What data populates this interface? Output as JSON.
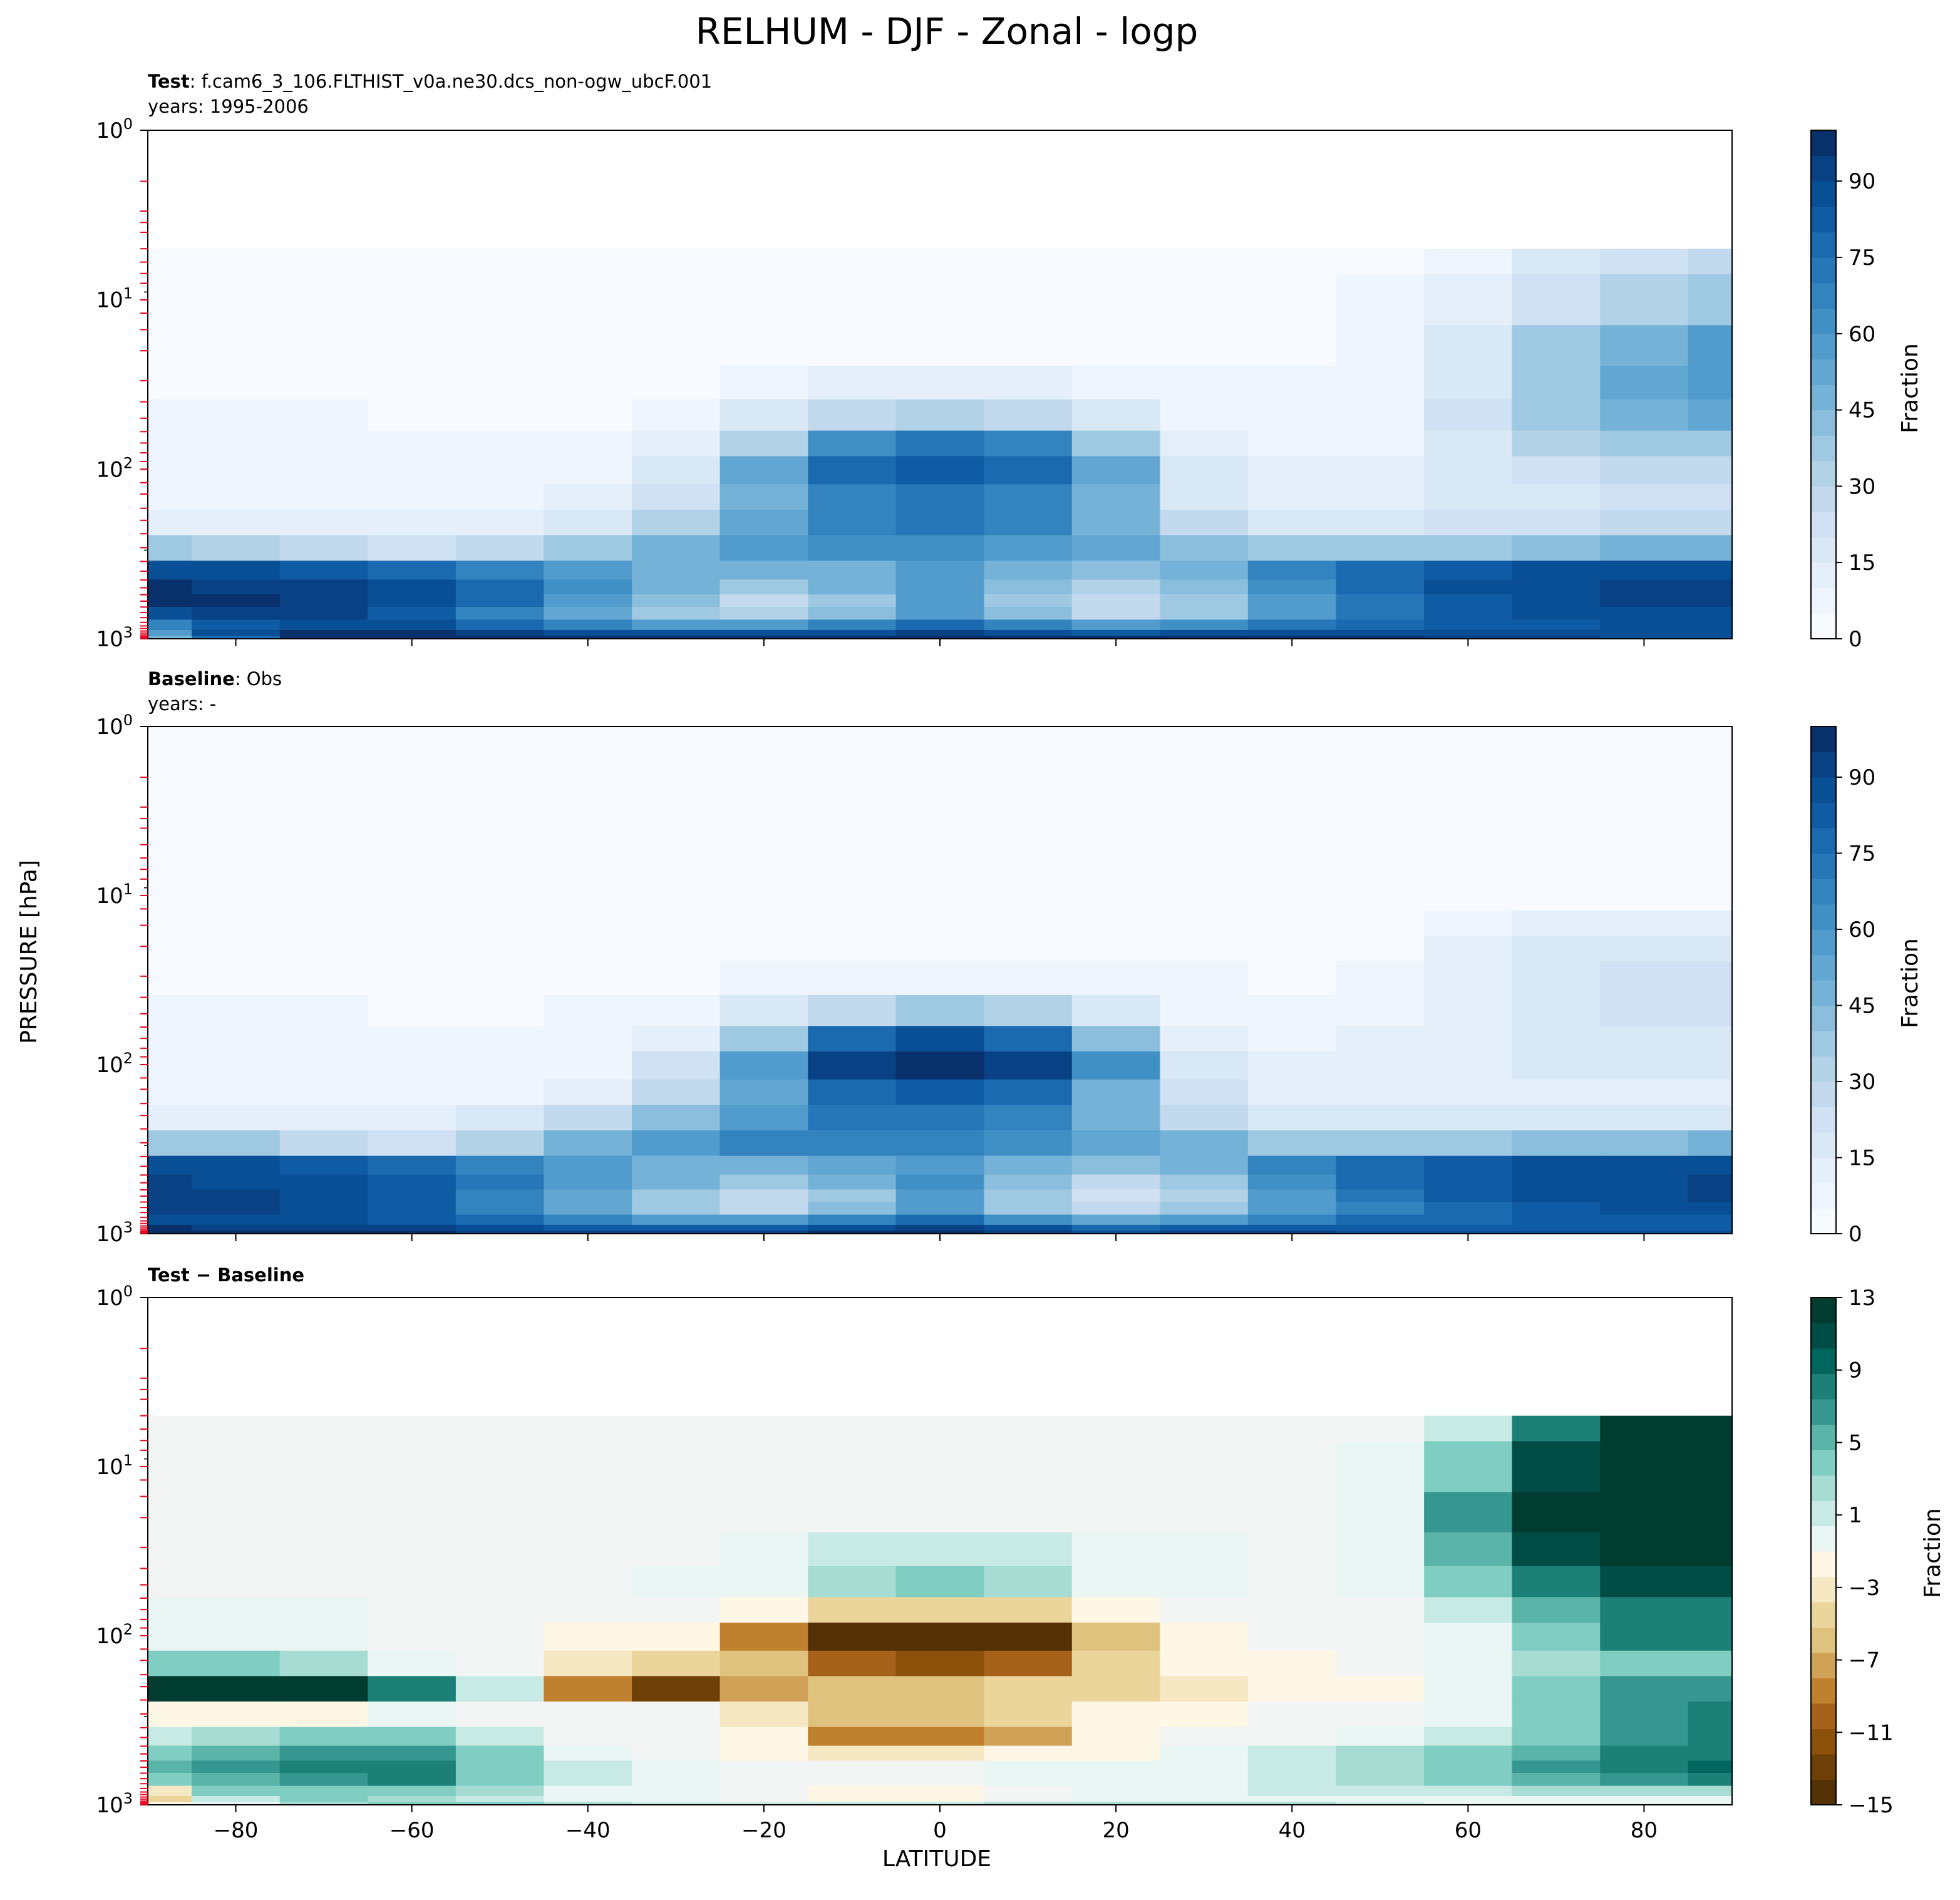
{
  "figure": {
    "title": "RELHUM - DJF - Zonal - logp",
    "ylabel": "PRESSURE [hPa]",
    "xlabel": "LATITUDE"
  },
  "panels": [
    {
      "label_bold": "Test",
      "label_rest": ": f.cam6_3_106.FLTHIST_v0a.ne30.dcs_non-ogw_ubcF.001",
      "years_line": "years: 1995-2006",
      "cbar_label": "Fraction",
      "cbar_ticks": [
        "0",
        "15",
        "30",
        "45",
        "60",
        "75",
        "90"
      ]
    },
    {
      "label_bold": "Baseline",
      "label_rest": ": Obs",
      "years_line": "years: -",
      "cbar_label": "Fraction",
      "cbar_ticks": [
        "0",
        "15",
        "30",
        "45",
        "60",
        "75",
        "90"
      ]
    },
    {
      "label_bold": "Test",
      "label_rest": "",
      "label_bold2": "Baseline",
      "years_line": "",
      "cbar_label": "Fraction",
      "cbar_ticks": [
        "13",
        "9",
        "5",
        "1",
        "−3",
        "−7",
        "−11",
        "−15"
      ]
    }
  ],
  "chart_data": [
    {
      "type": "heatmap",
      "name": "Test",
      "x": [
        -90,
        -80,
        -70,
        -60,
        -50,
        -40,
        -30,
        -20,
        -10,
        0,
        10,
        20,
        30,
        40,
        50,
        60,
        70,
        80,
        90
      ],
      "y": [
        5,
        10,
        20,
        30,
        50,
        70,
        100,
        150,
        200,
        300,
        400,
        500,
        600,
        700,
        850,
        925,
        1000
      ],
      "z": [
        [
          0,
          0,
          0,
          0,
          0,
          0,
          0,
          0,
          0,
          0,
          0,
          0,
          0,
          0,
          0,
          3,
          10,
          16,
          20
        ],
        [
          0,
          0,
          0,
          0,
          0,
          0,
          0,
          0,
          0,
          0,
          0,
          0,
          0,
          0,
          1,
          6,
          18,
          28,
          34
        ],
        [
          0,
          0,
          0,
          0,
          0,
          0,
          0,
          0,
          0,
          0,
          0,
          0,
          0,
          0,
          2,
          12,
          30,
          42,
          50
        ],
        [
          0,
          0,
          0,
          0,
          0,
          0,
          0,
          2,
          6,
          8,
          6,
          3,
          1,
          1,
          2,
          14,
          34,
          46,
          52
        ],
        [
          1,
          1,
          1,
          0,
          0,
          0,
          3,
          10,
          22,
          26,
          22,
          12,
          4,
          2,
          3,
          16,
          32,
          42,
          46
        ],
        [
          2,
          2,
          2,
          1,
          1,
          1,
          8,
          28,
          58,
          68,
          60,
          34,
          8,
          4,
          4,
          14,
          26,
          32,
          34
        ],
        [
          3,
          3,
          3,
          2,
          2,
          3,
          14,
          45,
          72,
          78,
          72,
          48,
          12,
          6,
          6,
          10,
          18,
          22,
          24
        ],
        [
          4,
          4,
          4,
          3,
          3,
          6,
          18,
          40,
          62,
          68,
          62,
          40,
          14,
          8,
          8,
          10,
          14,
          16,
          18
        ],
        [
          8,
          8,
          6,
          5,
          8,
          14,
          28,
          48,
          62,
          66,
          60,
          42,
          20,
          14,
          14,
          16,
          18,
          20,
          22
        ],
        [
          30,
          26,
          20,
          16,
          22,
          32,
          44,
          54,
          58,
          56,
          54,
          46,
          36,
          32,
          32,
          34,
          38,
          40,
          42
        ],
        [
          84,
          82,
          78,
          70,
          64,
          54,
          44,
          40,
          44,
          52,
          42,
          36,
          44,
          60,
          70,
          76,
          80,
          82,
          84
        ],
        [
          90,
          88,
          86,
          82,
          72,
          58,
          44,
          34,
          40,
          54,
          38,
          28,
          36,
          58,
          72,
          80,
          84,
          86,
          88
        ],
        [
          90,
          90,
          88,
          82,
          70,
          52,
          36,
          24,
          34,
          50,
          32,
          20,
          30,
          52,
          68,
          78,
          84,
          86,
          88
        ],
        [
          82,
          86,
          86,
          78,
          64,
          48,
          32,
          26,
          38,
          52,
          36,
          24,
          34,
          52,
          66,
          76,
          80,
          82,
          84
        ],
        [
          62,
          78,
          84,
          80,
          72,
          62,
          54,
          52,
          62,
          70,
          60,
          50,
          56,
          66,
          72,
          76,
          78,
          80,
          80
        ],
        [
          50,
          82,
          90,
          90,
          86,
          82,
          80,
          80,
          84,
          86,
          84,
          78,
          80,
          82,
          80,
          80,
          80,
          80,
          80
        ],
        [
          40,
          70,
          96,
          96,
          94,
          92,
          92,
          92,
          94,
          94,
          94,
          92,
          92,
          92,
          90,
          88,
          86,
          84,
          84
        ]
      ]
    },
    {
      "type": "heatmap",
      "name": "Baseline",
      "x": [
        -90,
        -80,
        -70,
        -60,
        -50,
        -40,
        -30,
        -20,
        -10,
        0,
        10,
        20,
        30,
        40,
        50,
        60,
        70,
        80,
        90
      ],
      "y": [
        1,
        5,
        10,
        15,
        20,
        30,
        50,
        70,
        100,
        150,
        200,
        300,
        400,
        500,
        600,
        700,
        850,
        925,
        1000
      ],
      "z": [
        [
          0,
          0,
          0,
          0,
          0,
          0,
          0,
          0,
          0,
          0,
          0,
          0,
          0,
          0,
          0,
          0,
          0,
          0,
          0
        ],
        [
          0,
          0,
          0,
          0,
          0,
          0,
          0,
          0,
          0,
          0,
          0,
          0,
          0,
          0,
          0,
          0,
          0,
          0,
          0
        ],
        [
          0,
          0,
          0,
          0,
          0,
          0,
          0,
          0,
          0,
          0,
          0,
          0,
          0,
          0,
          0,
          0,
          0,
          0,
          0
        ],
        [
          0,
          0,
          0,
          0,
          0,
          0,
          0,
          0,
          0,
          0,
          0,
          0,
          0,
          0,
          0,
          3,
          5,
          7,
          8
        ],
        [
          0,
          0,
          0,
          0,
          0,
          0,
          0,
          0,
          0,
          0,
          0,
          0,
          0,
          0,
          0,
          6,
          10,
          12,
          13
        ],
        [
          0,
          0,
          0,
          0,
          0,
          0,
          0,
          1,
          3,
          4,
          3,
          2,
          1,
          0,
          1,
          8,
          14,
          17,
          18
        ],
        [
          1,
          1,
          1,
          0,
          0,
          1,
          3,
          10,
          24,
          30,
          26,
          12,
          4,
          2,
          3,
          9,
          14,
          16,
          17
        ],
        [
          2,
          2,
          2,
          1,
          1,
          2,
          8,
          32,
          70,
          80,
          70,
          36,
          8,
          4,
          5,
          9,
          12,
          13,
          14
        ],
        [
          3,
          3,
          3,
          2,
          2,
          4,
          16,
          54,
          88,
          92,
          86,
          56,
          14,
          6,
          6,
          8,
          10,
          10,
          10
        ],
        [
          4,
          4,
          4,
          3,
          3,
          8,
          22,
          48,
          72,
          76,
          70,
          44,
          16,
          8,
          8,
          8,
          8,
          8,
          8
        ],
        [
          6,
          6,
          5,
          5,
          10,
          20,
          36,
          54,
          66,
          68,
          62,
          44,
          24,
          14,
          12,
          12,
          12,
          12,
          12
        ],
        [
          34,
          30,
          22,
          18,
          28,
          40,
          52,
          60,
          64,
          62,
          58,
          48,
          40,
          34,
          32,
          34,
          36,
          38,
          40
        ],
        [
          82,
          80,
          76,
          70,
          62,
          52,
          44,
          40,
          46,
          54,
          44,
          36,
          44,
          60,
          70,
          76,
          80,
          82,
          84
        ],
        [
          86,
          84,
          82,
          78,
          68,
          54,
          40,
          32,
          40,
          56,
          36,
          24,
          34,
          56,
          70,
          78,
          82,
          84,
          86
        ],
        [
          88,
          86,
          84,
          78,
          64,
          48,
          34,
          22,
          34,
          52,
          30,
          18,
          28,
          50,
          66,
          76,
          82,
          84,
          86
        ],
        [
          86,
          86,
          84,
          78,
          64,
          48,
          32,
          24,
          36,
          54,
          34,
          22,
          32,
          50,
          64,
          74,
          78,
          80,
          82
        ],
        [
          84,
          84,
          82,
          78,
          70,
          60,
          52,
          50,
          60,
          70,
          58,
          48,
          54,
          64,
          70,
          74,
          76,
          78,
          78
        ],
        [
          90,
          88,
          88,
          86,
          82,
          78,
          76,
          76,
          82,
          86,
          80,
          74,
          76,
          78,
          76,
          76,
          76,
          76,
          76
        ],
        [
          100,
          96,
          92,
          90,
          88,
          86,
          86,
          86,
          90,
          92,
          88,
          84,
          86,
          86,
          84,
          82,
          82,
          80,
          80
        ]
      ]
    },
    {
      "type": "heatmap",
      "name": "Test - Baseline",
      "x": [
        -90,
        -80,
        -70,
        -60,
        -50,
        -40,
        -30,
        -20,
        -10,
        0,
        10,
        20,
        30,
        40,
        50,
        60,
        70,
        80,
        90
      ],
      "y": [
        5,
        10,
        20,
        30,
        50,
        70,
        100,
        150,
        200,
        300,
        400,
        500,
        600,
        700,
        850,
        925,
        1000
      ],
      "z": [
        [
          0,
          0,
          0,
          0,
          0,
          0,
          0,
          0,
          0,
          0,
          0,
          0,
          0,
          0,
          0,
          3,
          10,
          13,
          13
        ],
        [
          0,
          0,
          0,
          0,
          0,
          0,
          0,
          0,
          0,
          0,
          0,
          0,
          0,
          0,
          1,
          6,
          12,
          14,
          14
        ],
        [
          0,
          0,
          0,
          0,
          0,
          0,
          0,
          0,
          0,
          0,
          0,
          0,
          0,
          0,
          2,
          8,
          14,
          14,
          14
        ],
        [
          0,
          0,
          0,
          0,
          0,
          0,
          0,
          2,
          3,
          3,
          3,
          2,
          1,
          0,
          2,
          7,
          12,
          14,
          14
        ],
        [
          0,
          0,
          0,
          0,
          0,
          0,
          1,
          2,
          4,
          5,
          4,
          2,
          1,
          0,
          1,
          5,
          10,
          12,
          12
        ],
        [
          1,
          1,
          1,
          0,
          0,
          0,
          0,
          -2,
          -5,
          -4,
          -4,
          -2,
          0,
          0,
          0,
          3,
          7,
          10,
          10
        ],
        [
          2,
          2,
          1,
          0,
          0,
          -1,
          -2,
          -8,
          -14,
          -15,
          -14,
          -6,
          -1,
          0,
          0,
          2,
          6,
          9,
          9
        ],
        [
          6,
          6,
          4,
          2,
          0,
          -3,
          -4,
          -6,
          -10,
          -12,
          -10,
          -5,
          -2,
          -1,
          0,
          2,
          4,
          6,
          6
        ],
        [
          14,
          14,
          13,
          10,
          3,
          -8,
          -13,
          -7,
          -6,
          -6,
          -5,
          -4,
          -3,
          -2,
          -1,
          2,
          6,
          8,
          8
        ],
        [
          -1,
          -1,
          -2,
          1,
          0,
          0,
          0,
          -3,
          -6,
          -6,
          -4,
          -2,
          -1,
          0,
          0,
          2,
          6,
          8,
          9
        ],
        [
          3,
          4,
          5,
          6,
          3,
          0,
          0,
          -2,
          -8,
          -9,
          -7,
          -2,
          0,
          0,
          1,
          3,
          6,
          8,
          9
        ],
        [
          6,
          7,
          8,
          8,
          5,
          2,
          0,
          -1,
          -3,
          -3,
          -2,
          -1,
          1,
          3,
          4,
          5,
          7,
          9,
          10
        ],
        [
          7,
          8,
          9,
          9,
          6,
          3,
          1,
          0,
          0,
          0,
          1,
          2,
          2,
          3,
          4,
          6,
          8,
          10,
          11
        ],
        [
          5,
          7,
          8,
          9,
          6,
          3,
          1,
          0,
          0,
          0,
          1,
          1,
          2,
          3,
          4,
          5,
          7,
          8,
          9
        ],
        [
          -3,
          5,
          6,
          6,
          4,
          2,
          1,
          0,
          -1,
          -1,
          0,
          1,
          2,
          3,
          3,
          3,
          4,
          4,
          4
        ],
        [
          -4,
          3,
          5,
          4,
          3,
          2,
          1,
          0,
          -1,
          -2,
          0,
          1,
          2,
          2,
          2,
          2,
          2,
          2,
          2
        ],
        [
          -2,
          2,
          4,
          6,
          5,
          4,
          3,
          3,
          3,
          3,
          4,
          4,
          4,
          4,
          3,
          2,
          2,
          2,
          2
        ]
      ]
    }
  ],
  "axes": {
    "x_ticks": [
      "−80",
      "−60",
      "−40",
      "−20",
      "0",
      "20",
      "40",
      "60",
      "80"
    ],
    "x_lim": [
      -90,
      90
    ],
    "y_scale": "log",
    "y_lim": [
      1,
      1000
    ],
    "y_inverted": true,
    "y_ticks": [
      {
        "base": "10",
        "exp": "0"
      },
      {
        "base": "10",
        "exp": "1"
      },
      {
        "base": "10",
        "exp": "2"
      },
      {
        "base": "10",
        "exp": "3"
      }
    ]
  },
  "colors": {
    "blues": [
      "#f7fbff",
      "#eef5fc",
      "#e4eff9",
      "#d9e8f5",
      "#cfe1f2",
      "#c2d9ee",
      "#b2d2e8",
      "#9fc8e2",
      "#8bbedc",
      "#75b2d7",
      "#62a7d2",
      "#519ccc",
      "#4190c5",
      "#3383be",
      "#2676b8",
      "#1b69af",
      "#105ca4",
      "#084f95",
      "#084184",
      "#08306b"
    ],
    "diff_neg": [
      "#fff7e6",
      "#f6e8c3",
      "#ecd59b",
      "#dfc27d",
      "#cfa257",
      "#bf812d",
      "#a6611a",
      "#8c510a",
      "#6e3f07",
      "#543005"
    ],
    "diff_pos": [
      "#eaf6f3",
      "#c7eae5",
      "#a6dcd2",
      "#80cdc1",
      "#5ab4a7",
      "#35978f",
      "#1d8077",
      "#01665e",
      "#014d45",
      "#003c30"
    ],
    "diff_empty": "#f3f5f4",
    "level_marks": "#e8001c"
  }
}
